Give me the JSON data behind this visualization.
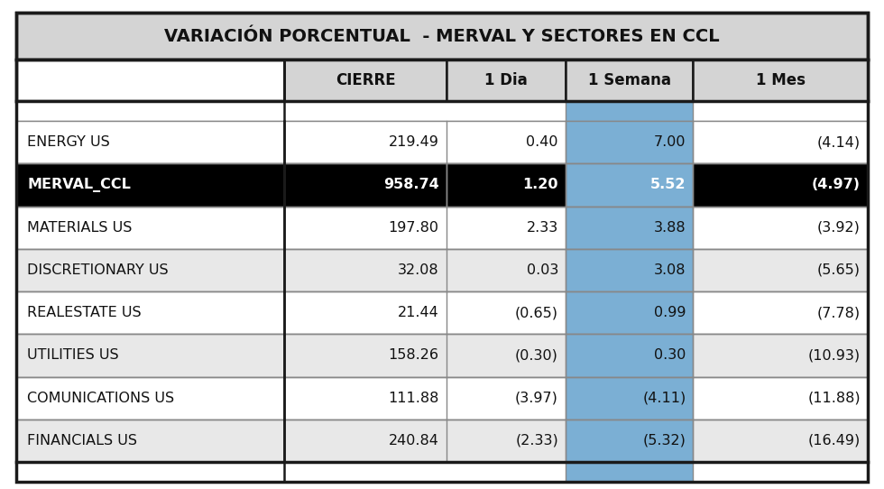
{
  "title": "VARIACIÓN PORCENTUAL  - MERVAL Y SECTORES EN CCL",
  "columns": [
    "",
    "CIERRE",
    "1 Dia",
    "1 Semana",
    "1 Mes"
  ],
  "rows": [
    {
      "name": "ENERGY US",
      "cierre": "219.49",
      "dia": "0.40",
      "semana": "7.00",
      "mes": "(4.14)",
      "bold": false,
      "black_bg": false
    },
    {
      "name": "MERVAL_CCL",
      "cierre": "958.74",
      "dia": "1.20",
      "semana": "5.52",
      "mes": "(4.97)",
      "bold": true,
      "black_bg": true
    },
    {
      "name": "MATERIALS US",
      "cierre": "197.80",
      "dia": "2.33",
      "semana": "3.88",
      "mes": "(3.92)",
      "bold": false,
      "black_bg": false
    },
    {
      "name": "DISCRETIONARY US",
      "cierre": "32.08",
      "dia": "0.03",
      "semana": "3.08",
      "mes": "(5.65)",
      "bold": false,
      "black_bg": false
    },
    {
      "name": "REALESTATE US",
      "cierre": "21.44",
      "dia": "(0.65)",
      "semana": "0.99",
      "mes": "(7.78)",
      "bold": false,
      "black_bg": false
    },
    {
      "name": "UTILITIES US",
      "cierre": "158.26",
      "dia": "(0.30)",
      "semana": "0.30",
      "mes": "(10.93)",
      "bold": false,
      "black_bg": false
    },
    {
      "name": "COMUNICATIONS US",
      "cierre": "111.88",
      "dia": "(3.97)",
      "semana": "(4.11)",
      "mes": "(11.88)",
      "bold": false,
      "black_bg": false
    },
    {
      "name": "FINANCIALS US",
      "cierre": "240.84",
      "dia": "(2.33)",
      "semana": "(5.32)",
      "mes": "(16.49)",
      "bold": false,
      "black_bg": false
    }
  ],
  "color_header_bg": "#d4d4d4",
  "color_black_bg": "#000000",
  "color_white_text": "#ffffff",
  "color_semana_highlight": "#7bafd4",
  "color_row_light": "#e8e8e8",
  "color_row_white": "#ffffff",
  "color_border_outer": "#1a1a1a",
  "color_border_inner": "#888888",
  "title_fontsize": 14,
  "header_fontsize": 12,
  "cell_fontsize": 11.5,
  "fig_width": 9.8,
  "fig_height": 5.42,
  "dpi": 100
}
